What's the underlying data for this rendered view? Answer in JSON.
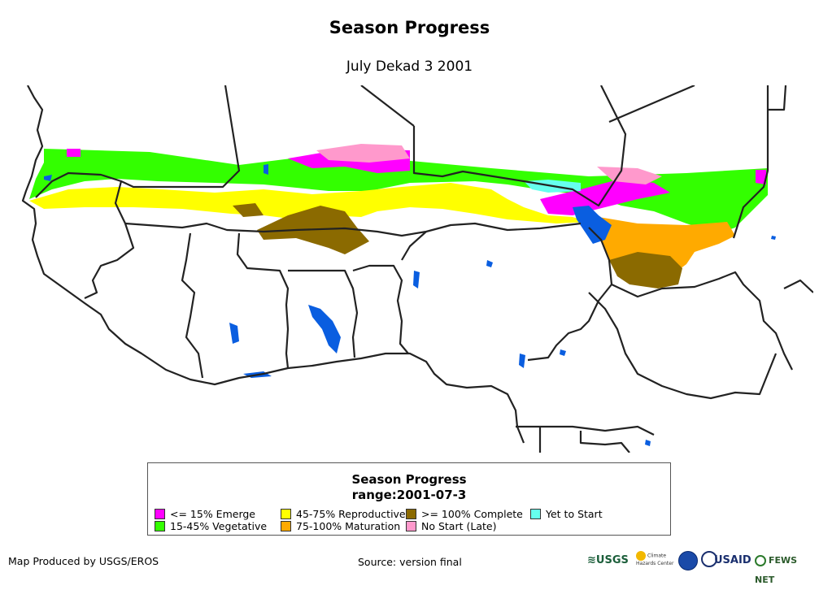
{
  "header": {
    "title": "Season Progress",
    "subtitle": "July Dekad 3 2001"
  },
  "legend": {
    "title": "Season Progress",
    "range": "range:2001-07-3",
    "items": [
      {
        "label": "<= 15% Emerge",
        "color": "#ff00ff"
      },
      {
        "label": "15-45% Vegetative",
        "color": "#33ff00"
      },
      {
        "label": "45-75% Reproductive",
        "color": "#ffff00"
      },
      {
        "label": "75-100% Maturation",
        "color": "#ffaa00"
      },
      {
        "label": ">= 100% Complete",
        "color": "#8b6a00"
      },
      {
        "label": "No Start (Late)",
        "color": "#ff99cc"
      },
      {
        "label": "Yet to Start",
        "color": "#66ffee"
      }
    ]
  },
  "footer": {
    "producer": "Map Produced by USGS/EROS",
    "source": "Source: version final"
  },
  "logos": {
    "usgs": "USGS",
    "chc": "Climate Hazards Center",
    "usaid": "USAID",
    "fews": "FEWS NET"
  },
  "colors": {
    "water": "#0a5ee0",
    "border": "#222222"
  }
}
